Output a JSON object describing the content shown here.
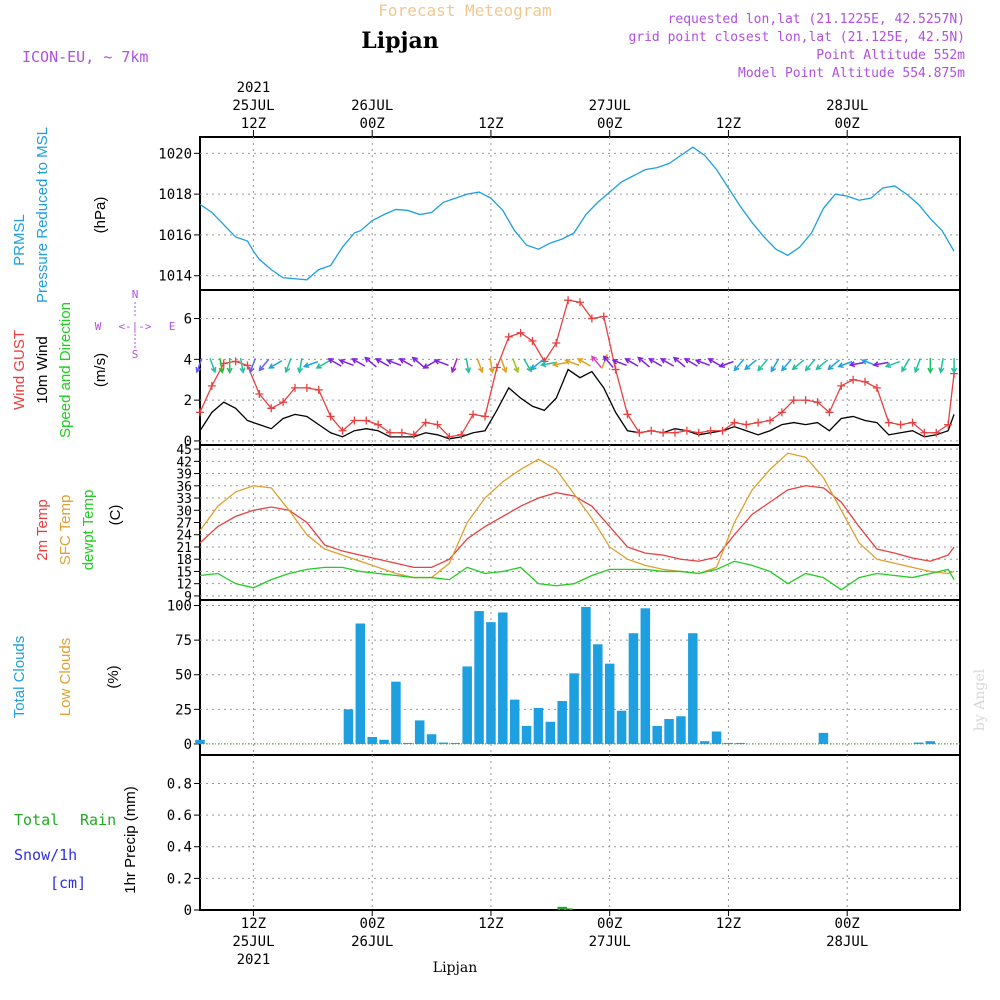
{
  "header": {
    "title": "Forecast Meteogram",
    "location": "Lipjan",
    "model": "ICON-EU, ~ 7km",
    "requested": "requested lon,lat (21.1225E, 42.5257N)",
    "grid_point": "grid point closest lon,lat (21.125E, 42.5N)",
    "point_altitude": "Point Altitude 552m",
    "model_altitude": "Model Point Altitude 554.875m",
    "footer_location": "Lipjan",
    "credit": "by Angel"
  },
  "colors": {
    "pressure": "#1e9fe0",
    "gust": "#e84040",
    "wind": "#000000",
    "temp": "#e84040",
    "sfc": "#e0a030",
    "dewpt": "#22cc22",
    "clouds": "#1e9fe0",
    "low_clouds": "#e0a030",
    "rain": "#22aa22",
    "snow": "#3030e0",
    "purple": "#b050e0"
  },
  "time_axis": {
    "top": [
      {
        "lines": [
          "2021",
          "25JUL",
          "12Z"
        ]
      },
      {
        "lines": [
          "26JUL",
          "00Z"
        ]
      },
      {
        "lines": [
          "12Z"
        ]
      },
      {
        "lines": [
          "27JUL",
          "00Z"
        ]
      },
      {
        "lines": [
          "12Z"
        ]
      },
      {
        "lines": [
          "28JUL",
          "00Z"
        ]
      }
    ],
    "bottom": [
      {
        "lines": [
          "12Z",
          "25JUL",
          "2021"
        ]
      },
      {
        "lines": [
          "00Z",
          "26JUL"
        ]
      },
      {
        "lines": [
          "12Z"
        ]
      },
      {
        "lines": [
          "00Z",
          "27JUL"
        ]
      },
      {
        "lines": [
          "12Z"
        ]
      },
      {
        "lines": [
          "00Z",
          "28JUL"
        ]
      }
    ]
  },
  "panels": {
    "pressure": {
      "label1": "PRMSL",
      "label2": "Pressure Reduced to MSL",
      "unit": "(hPa)",
      "ticks": [
        "1014",
        "1016",
        "1018",
        "1020"
      ]
    },
    "wind": {
      "label1": "Wind GUST",
      "label2": "10m Wind",
      "label3": "Speed and Direction",
      "unit": "(m/s)",
      "compass": {
        "w": "W",
        "e": "E",
        "n": "N",
        "s": "S",
        "h": "<-|->"
      },
      "ticks": [
        "0",
        "2",
        "4",
        "6"
      ]
    },
    "temp": {
      "label1": "2m Temp",
      "label2": "SFC Temp",
      "label3": "dewpt Temp",
      "unit": "(C)",
      "ticks": [
        "9",
        "12",
        "15",
        "18",
        "21",
        "24",
        "27",
        "30",
        "33",
        "36",
        "39",
        "42",
        "45"
      ]
    },
    "clouds": {
      "label1": "Total Clouds",
      "label2": "Low Clouds",
      "unit": "(%)",
      "ticks": [
        "0",
        "25",
        "50",
        "75",
        "100"
      ]
    },
    "precip": {
      "label1": "Total",
      "label1b": "Rain",
      "label2": "Snow/1h",
      "label3": "[cm]",
      "unit": "1hr Precip (mm)",
      "ticks": [
        "0",
        "0.2",
        "0.4",
        "0.6",
        "0.8"
      ]
    }
  },
  "chart_data": [
    {
      "type": "line",
      "title": "PRMSL Pressure Reduced to MSL",
      "ylabel": "hPa",
      "ylim": [
        1013.3,
        1020.8
      ],
      "x_hours": [
        0,
        2,
        4,
        6,
        8,
        9,
        10,
        12,
        14,
        16,
        18,
        20,
        22,
        24,
        26,
        27,
        29,
        31,
        33,
        35,
        37,
        39,
        41,
        43,
        45,
        47,
        49,
        51,
        53,
        55,
        57,
        59,
        61,
        63,
        65,
        67,
        69,
        71,
        73,
        75,
        77,
        79,
        81,
        83,
        85,
        87,
        89,
        91,
        93,
        95,
        97,
        99,
        101,
        103,
        105,
        107,
        109,
        111,
        113,
        115,
        117,
        119,
        121,
        123,
        125,
        127
      ],
      "values": [
        1017.5,
        1017.1,
        1016.5,
        1015.9,
        1015.7,
        1015.2,
        1014.8,
        1014.3,
        1013.9,
        1013.85,
        1013.8,
        1014.3,
        1014.5,
        1015.4,
        1016.1,
        1016.2,
        1016.7,
        1017.0,
        1017.25,
        1017.2,
        1017.0,
        1017.1,
        1017.6,
        1017.8,
        1018.0,
        1018.1,
        1017.8,
        1017.2,
        1016.2,
        1015.5,
        1015.3,
        1015.6,
        1015.8,
        1016.1,
        1017.0,
        1017.6,
        1018.1,
        1018.6,
        1018.9,
        1019.2,
        1019.3,
        1019.5,
        1019.9,
        1020.3,
        1019.9,
        1019.2,
        1018.3,
        1017.4,
        1016.6,
        1015.9,
        1015.3,
        1015.0,
        1015.4,
        1016.1,
        1017.3,
        1018.0,
        1017.9,
        1017.7,
        1017.8,
        1018.3,
        1018.4,
        1018.0,
        1017.5,
        1016.8,
        1016.2,
        1015.2
      ]
    },
    {
      "type": "line",
      "title": "Wind GUST / 10m Wind Speed",
      "ylabel": "m/s",
      "ylim": [
        -0.2,
        7.4
      ],
      "x_hours": [
        0,
        2,
        4,
        6,
        8,
        10,
        12,
        14,
        16,
        18,
        20,
        22,
        24,
        26,
        28,
        30,
        32,
        34,
        36,
        38,
        40,
        42,
        44,
        46,
        48,
        50,
        52,
        54,
        56,
        58,
        60,
        62,
        64,
        66,
        68,
        70,
        72,
        74,
        76,
        78,
        80,
        82,
        84,
        86,
        88,
        90,
        92,
        94,
        96,
        98,
        100,
        102,
        104,
        106,
        108,
        110,
        112,
        114,
        116,
        118,
        120,
        122,
        124,
        126,
        127
      ],
      "series": [
        {
          "name": "Wind GUST",
          "values": [
            1.4,
            2.7,
            3.8,
            3.9,
            3.7,
            2.3,
            1.6,
            1.9,
            2.6,
            2.6,
            2.5,
            1.2,
            0.5,
            1.0,
            1.0,
            0.8,
            0.4,
            0.4,
            0.3,
            0.9,
            0.8,
            0.2,
            0.3,
            1.3,
            1.2,
            3.6,
            5.1,
            5.3,
            4.9,
            3.9,
            4.8,
            6.9,
            6.8,
            6.0,
            6.1,
            3.5,
            1.3,
            0.4,
            0.5,
            0.4,
            0.4,
            0.5,
            0.4,
            0.5,
            0.5,
            0.9,
            0.8,
            0.9,
            1.0,
            1.4,
            2.0,
            2.0,
            1.9,
            1.4,
            2.7,
            3.0,
            2.9,
            2.6,
            0.9,
            0.8,
            0.9,
            0.4,
            0.4,
            0.8,
            3.3
          ]
        },
        {
          "name": "10m Wind",
          "values": [
            0.5,
            1.4,
            1.9,
            1.6,
            1.0,
            0.8,
            0.6,
            1.1,
            1.3,
            1.2,
            0.8,
            0.4,
            0.2,
            0.5,
            0.6,
            0.5,
            0.2,
            0.2,
            0.2,
            0.4,
            0.3,
            0.1,
            0.2,
            0.4,
            0.5,
            1.5,
            2.6,
            2.1,
            1.7,
            1.5,
            2.1,
            3.5,
            3.1,
            3.4,
            2.6,
            1.4,
            0.5,
            0.4,
            0.5,
            0.4,
            0.6,
            0.5,
            0.3,
            0.4,
            0.5,
            0.7,
            0.5,
            0.3,
            0.5,
            0.8,
            0.9,
            0.8,
            0.9,
            0.5,
            1.1,
            1.2,
            1.0,
            0.9,
            0.3,
            0.4,
            0.5,
            0.2,
            0.3,
            0.5,
            1.3
          ]
        }
      ]
    },
    {
      "type": "line",
      "title": "2m Temp / SFC Temp / dewpt Temp",
      "ylabel": "C",
      "ylim": [
        8,
        46
      ],
      "x_hours": [
        0,
        3,
        6,
        9,
        12,
        15,
        18,
        21,
        24,
        27,
        30,
        33,
        36,
        39,
        42,
        45,
        48,
        51,
        54,
        57,
        60,
        63,
        66,
        69,
        72,
        75,
        78,
        81,
        84,
        87,
        90,
        93,
        96,
        99,
        102,
        105,
        108,
        111,
        114,
        117,
        120,
        123,
        126,
        127
      ],
      "series": [
        {
          "name": "2m Temp",
          "values": [
            22,
            26,
            28.5,
            30,
            30.8,
            30,
            27,
            21.5,
            20,
            19,
            18,
            17,
            16,
            16,
            18,
            23,
            26,
            28.5,
            31,
            33,
            34.3,
            33.5,
            31,
            26,
            21,
            19.5,
            19,
            18,
            17.5,
            18.5,
            24,
            29,
            32,
            35,
            36,
            35.5,
            32,
            26,
            20.5,
            19.5,
            18.3,
            17.5,
            19,
            21
          ]
        },
        {
          "name": "SFC Temp",
          "values": [
            25,
            31,
            34.5,
            36,
            35.5,
            30,
            24,
            20.5,
            19,
            17.5,
            16,
            14.5,
            13.5,
            13.5,
            17,
            27,
            33,
            37,
            40,
            42.5,
            40,
            34,
            28,
            21,
            18,
            16.5,
            15.5,
            15,
            14.5,
            16,
            27,
            35,
            40,
            44,
            43,
            38,
            30,
            22,
            18,
            17,
            16,
            15,
            14.5,
            15
          ]
        },
        {
          "name": "dewpt Temp",
          "values": [
            14,
            14.5,
            12,
            11,
            13,
            14.5,
            15.5,
            16,
            16,
            15,
            14.5,
            14,
            13.5,
            13.5,
            13,
            16,
            14.5,
            15,
            16,
            12,
            11.5,
            12,
            14,
            15.5,
            15.5,
            15.5,
            15,
            15,
            14.5,
            15.5,
            17.5,
            16.5,
            15,
            12,
            14.5,
            13.5,
            10.5,
            13.5,
            14.5,
            14,
            13.5,
            14.5,
            15.5,
            13
          ]
        }
      ]
    },
    {
      "type": "bar",
      "title": "Total Clouds / Low Clouds",
      "ylabel": "%",
      "ylim": [
        -8,
        104
      ],
      "x_hours": [
        0,
        25,
        27,
        29,
        31,
        33,
        35,
        37,
        39,
        41,
        43,
        45,
        47,
        49,
        51,
        53,
        55,
        57,
        59,
        61,
        63,
        65,
        67,
        69,
        71,
        73,
        75,
        77,
        79,
        81,
        83,
        85,
        87,
        89,
        91,
        105,
        121,
        123
      ],
      "series": [
        {
          "name": "Total Clouds",
          "values": [
            3,
            25,
            87,
            5,
            3,
            45,
            0,
            17,
            7,
            1,
            0,
            56,
            96,
            88,
            95,
            32,
            13,
            26,
            16,
            31,
            51,
            99,
            72,
            58,
            24,
            80,
            98,
            13,
            18,
            20,
            80,
            2,
            9,
            0,
            0,
            8,
            1,
            2
          ]
        }
      ]
    },
    {
      "type": "bar",
      "title": "1hr Precip",
      "ylabel": "mm",
      "ylim": [
        0,
        0.98
      ],
      "x_hours": [
        61,
        62
      ],
      "series": [
        {
          "name": "Total Rain",
          "values": [
            0.02,
            0.01
          ]
        },
        {
          "name": "Snow/1h",
          "values": [
            0,
            0
          ]
        }
      ]
    }
  ],
  "wind_arrows": [
    {
      "h": 0,
      "dir": 200,
      "c": "#6060ff"
    },
    {
      "h": 2,
      "dir": 160,
      "c": "#20c0a0"
    },
    {
      "h": 3.5,
      "dir": 170,
      "c": "#20c020"
    },
    {
      "h": 5,
      "dir": 180,
      "c": "#20c060"
    },
    {
      "h": 7,
      "dir": 170,
      "c": "#20c0a0"
    },
    {
      "h": 9,
      "dir": 200,
      "c": "#6060ff"
    },
    {
      "h": 11,
      "dir": 220,
      "c": "#6060ff"
    },
    {
      "h": 13,
      "dir": 240,
      "c": "#20a0e0"
    },
    {
      "h": 15,
      "dir": 200,
      "c": "#20c0a0"
    },
    {
      "h": 17,
      "dir": 190,
      "c": "#20c0a0"
    },
    {
      "h": 19,
      "dir": 250,
      "c": "#20a0e0"
    },
    {
      "h": 21,
      "dir": 240,
      "c": "#20c0a0"
    },
    {
      "h": 23,
      "dir": 300,
      "c": "#8020e0"
    },
    {
      "h": 25,
      "dir": 290,
      "c": "#8020e0"
    },
    {
      "h": 27,
      "dir": 300,
      "c": "#8020e0"
    },
    {
      "h": 29,
      "dir": 310,
      "c": "#8020e0"
    },
    {
      "h": 31,
      "dir": 300,
      "c": "#8020e0"
    },
    {
      "h": 33,
      "dir": 290,
      "c": "#8020e0"
    },
    {
      "h": 35,
      "dir": 300,
      "c": "#8020e0"
    },
    {
      "h": 37,
      "dir": 310,
      "c": "#8020e0"
    },
    {
      "h": 39,
      "dir": 240,
      "c": "#8020e0"
    },
    {
      "h": 41,
      "dir": 290,
      "c": "#8020e0"
    },
    {
      "h": 43,
      "dir": 200,
      "c": "#a020c0"
    },
    {
      "h": 45,
      "dir": 170,
      "c": "#20c0a0"
    },
    {
      "h": 47,
      "dir": 160,
      "c": "#e0a020"
    },
    {
      "h": 49,
      "dir": 170,
      "c": "#e0a020"
    },
    {
      "h": 51,
      "dir": 160,
      "c": "#e0a020"
    },
    {
      "h": 53,
      "dir": 160,
      "c": "#a0c020"
    },
    {
      "h": 55,
      "dir": 150,
      "c": "#20c0a0"
    },
    {
      "h": 57,
      "dir": 230,
      "c": "#20a0e0"
    },
    {
      "h": 59,
      "dir": 260,
      "c": "#20c0a0"
    },
    {
      "h": 61,
      "dir": 260,
      "c": "#e0a020"
    },
    {
      "h": 63,
      "dir": 290,
      "c": "#e0a020"
    },
    {
      "h": 65,
      "dir": 300,
      "c": "#e0a020"
    },
    {
      "h": 67,
      "dir": 320,
      "c": "#e040c0"
    },
    {
      "h": 68,
      "dir": 20,
      "c": "#e0a020"
    },
    {
      "h": 69,
      "dir": 320,
      "c": "#8020e0"
    },
    {
      "h": 71,
      "dir": 290,
      "c": "#8020e0"
    },
    {
      "h": 73,
      "dir": 300,
      "c": "#8020e0"
    },
    {
      "h": 75,
      "dir": 310,
      "c": "#8020e0"
    },
    {
      "h": 77,
      "dir": 300,
      "c": "#8020e0"
    },
    {
      "h": 79,
      "dir": 300,
      "c": "#8020e0"
    },
    {
      "h": 81,
      "dir": 310,
      "c": "#8020e0"
    },
    {
      "h": 83,
      "dir": 300,
      "c": "#8020e0"
    },
    {
      "h": 85,
      "dir": 290,
      "c": "#8020e0"
    },
    {
      "h": 87,
      "dir": 300,
      "c": "#8020e0"
    },
    {
      "h": 89,
      "dir": 250,
      "c": "#8020e0"
    },
    {
      "h": 91,
      "dir": 220,
      "c": "#20a0e0"
    },
    {
      "h": 93,
      "dir": 230,
      "c": "#20a0e0"
    },
    {
      "h": 95,
      "dir": 220,
      "c": "#20c0a0"
    },
    {
      "h": 97,
      "dir": 210,
      "c": "#20a0e0"
    },
    {
      "h": 99,
      "dir": 220,
      "c": "#20a0e0"
    },
    {
      "h": 101,
      "dir": 230,
      "c": "#20c0a0"
    },
    {
      "h": 103,
      "dir": 220,
      "c": "#20c0a0"
    },
    {
      "h": 105,
      "dir": 230,
      "c": "#20c0a0"
    },
    {
      "h": 107,
      "dir": 230,
      "c": "#20a0e0"
    },
    {
      "h": 109,
      "dir": 250,
      "c": "#20a0e0"
    },
    {
      "h": 111,
      "dir": 260,
      "c": "#8020e0"
    },
    {
      "h": 113,
      "dir": 290,
      "c": "#20a0e0"
    },
    {
      "h": 115,
      "dir": 260,
      "c": "#8020e0"
    },
    {
      "h": 117,
      "dir": 250,
      "c": "#20c0a0"
    },
    {
      "h": 119,
      "dir": 210,
      "c": "#20c0a0"
    },
    {
      "h": 121,
      "dir": 200,
      "c": "#20c0a0"
    },
    {
      "h": 123,
      "dir": 180,
      "c": "#20c060"
    },
    {
      "h": 125,
      "dir": 190,
      "c": "#20c0a0"
    },
    {
      "h": 127,
      "dir": 180,
      "c": "#20c0a0"
    }
  ]
}
